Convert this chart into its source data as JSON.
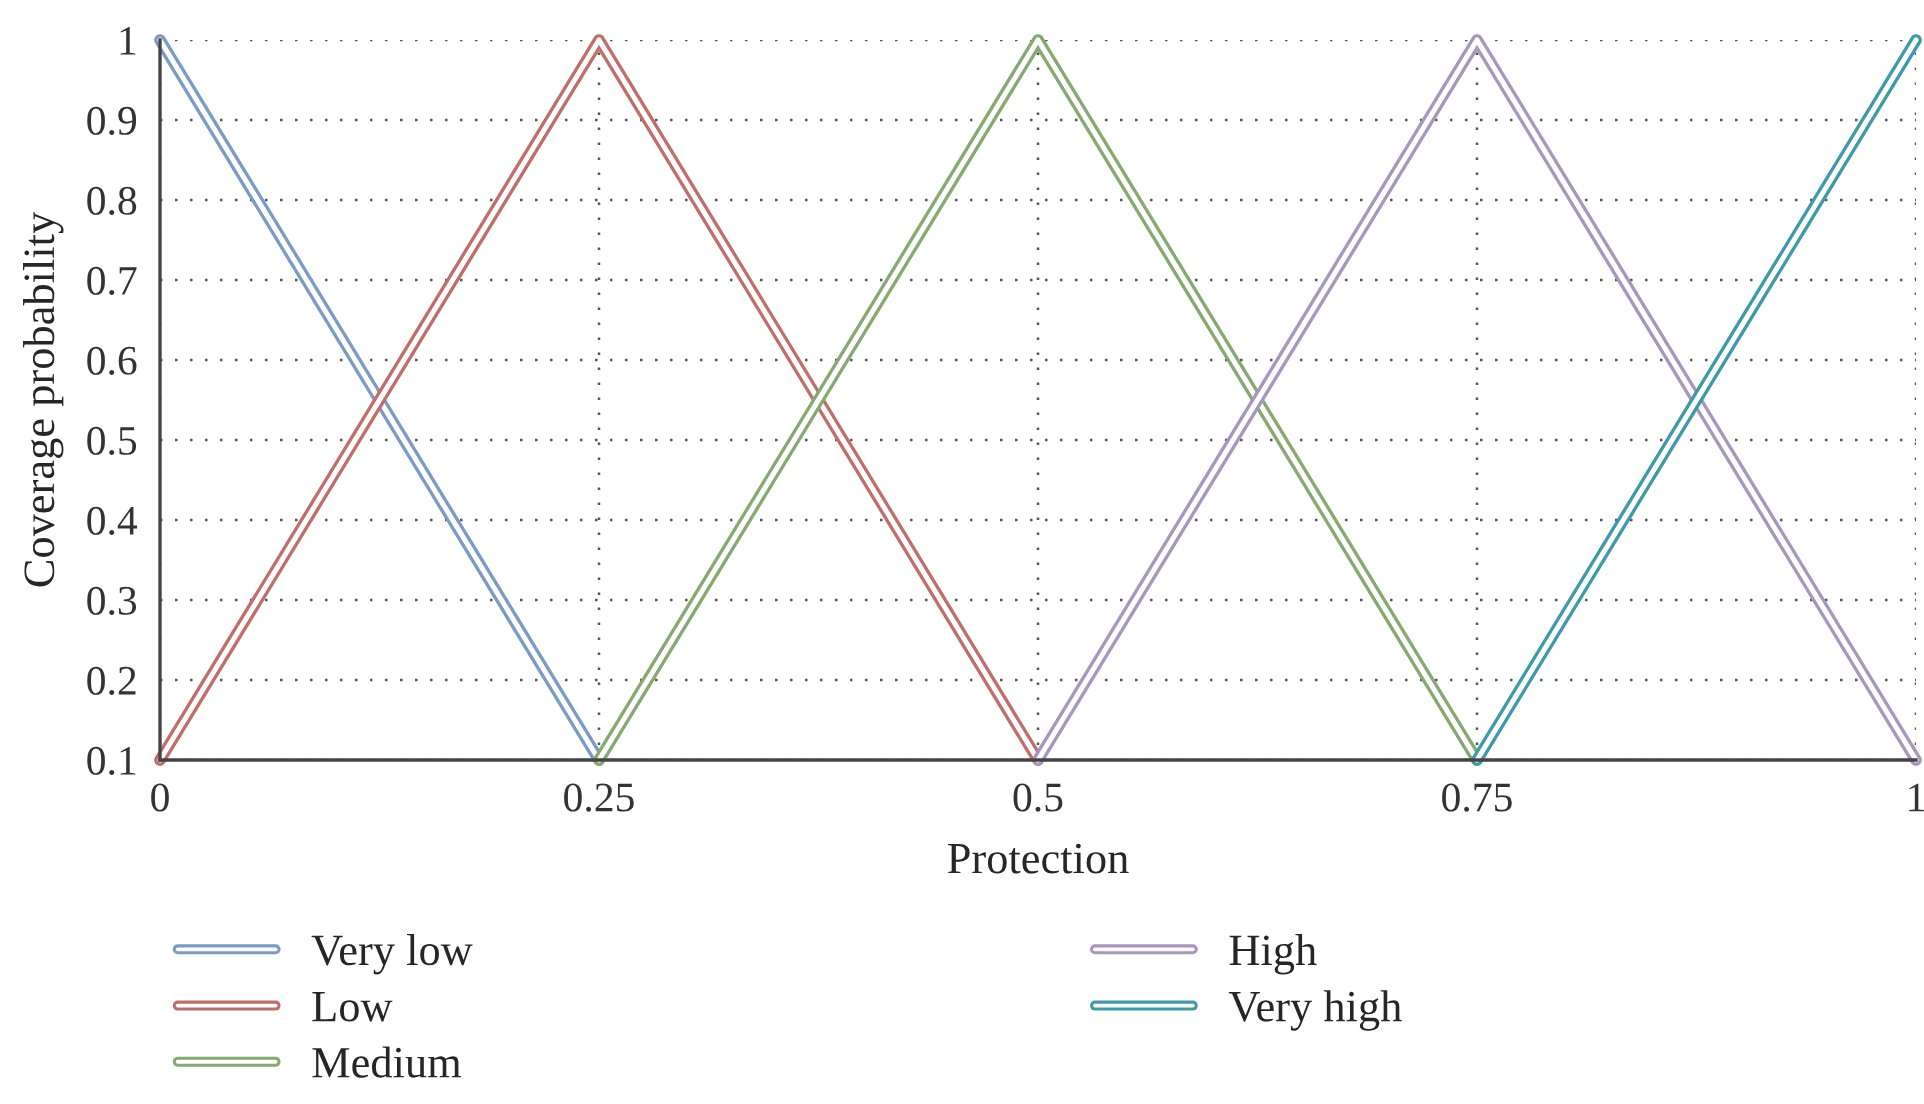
{
  "chart_data": {
    "type": "line",
    "xlabel": "Protection",
    "ylabel": "Coverage probability",
    "xlim": [
      0,
      1
    ],
    "ylim": [
      0.1,
      1
    ],
    "xticks": [
      0,
      0.25,
      0.5,
      0.75,
      1
    ],
    "yticks": [
      0.1,
      0.2,
      0.3,
      0.4,
      0.5,
      0.6,
      0.7,
      0.8,
      0.9,
      1
    ],
    "grid": true,
    "legend": "bottom",
    "line_style": "solid",
    "series": [
      {
        "name": "Very low",
        "color": "#7b9bc4",
        "x": [
          0,
          0.25
        ],
        "values": [
          1,
          0.1
        ]
      },
      {
        "name": "Low",
        "color": "#c06e6a",
        "x": [
          0,
          0.25,
          0.5
        ],
        "values": [
          0.1,
          1,
          0.1
        ]
      },
      {
        "name": "Medium",
        "color": "#86a971",
        "x": [
          0.25,
          0.5,
          0.75
        ],
        "values": [
          0.1,
          1,
          0.1
        ]
      },
      {
        "name": "High",
        "color": "#a796bd",
        "x": [
          0.5,
          0.75,
          1
        ],
        "values": [
          0.1,
          1,
          0.1
        ]
      },
      {
        "name": "Very high",
        "color": "#3e9aa6",
        "x": [
          0.75,
          1
        ],
        "values": [
          0.1,
          1
        ]
      }
    ]
  }
}
